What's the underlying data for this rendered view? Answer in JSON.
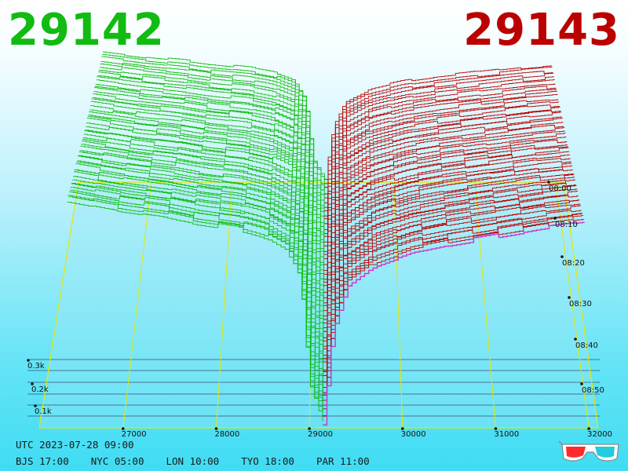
{
  "header": {
    "bid_price": "29142",
    "ask_price": "29143",
    "bid_color": "#11bb11",
    "ask_color": "#bb0000"
  },
  "chart_data": {
    "type": "line",
    "description_free": true,
    "price_axis": {
      "ticks": [
        "27000",
        "28000",
        "29000",
        "30000",
        "31000",
        "32000"
      ],
      "range": [
        26100,
        32100
      ]
    },
    "time_axis": {
      "ticks": [
        "08:00",
        "08:10",
        "08:20",
        "08:30",
        "08:40",
        "08:50"
      ]
    },
    "volume_axis": {
      "ticks": [
        "0.3k",
        "0.2k",
        "0.1k"
      ]
    },
    "colors": {
      "bid": "#11bb11",
      "ask": "#bb0000",
      "latest_ask": "#cc33cc",
      "frame": "#e6e600",
      "guide": "#222244"
    },
    "bid_profile": [
      [
        26400,
        0.88
      ],
      [
        26700,
        0.86
      ],
      [
        27000,
        0.84
      ],
      [
        27400,
        0.82
      ],
      [
        27800,
        0.79
      ],
      [
        28200,
        0.77
      ],
      [
        28500,
        0.74
      ],
      [
        28750,
        0.69
      ],
      [
        28900,
        0.57
      ],
      [
        29000,
        0.16
      ],
      [
        29142,
        0.02
      ]
    ],
    "ask_profile": [
      [
        29143,
        0.02
      ],
      [
        29250,
        0.38
      ],
      [
        29400,
        0.55
      ],
      [
        29700,
        0.63
      ],
      [
        30100,
        0.68
      ],
      [
        30500,
        0.71
      ],
      [
        31000,
        0.74
      ],
      [
        31500,
        0.77
      ],
      [
        31950,
        0.79
      ]
    ]
  },
  "footer": {
    "utc": "UTC 2023-07-28 09:00",
    "zones": [
      "BJS 17:00",
      "NYC 05:00",
      "LON 10:00",
      "TYO 18:00",
      "PAR 11:00"
    ]
  },
  "icons": {
    "glasses": "3d-glasses-icon"
  }
}
